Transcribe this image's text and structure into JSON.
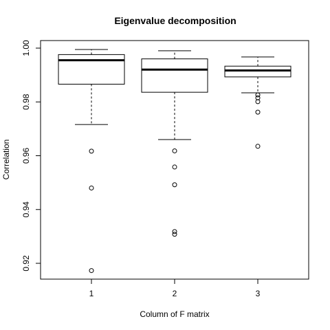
{
  "chart_data": {
    "type": "boxplot",
    "title": "Eigenvalue decomposition",
    "xlabel": "Column of F matrix",
    "ylabel": "Correlation",
    "categories": [
      "1",
      "2",
      "3"
    ],
    "ylim": [
      0.914,
      1.0025
    ],
    "yticks": [
      0.92,
      0.94,
      0.96,
      0.98,
      1.0
    ],
    "ytick_labels": [
      "0.92",
      "0.94",
      "0.96",
      "0.98",
      "1.00"
    ],
    "grid": false,
    "boxes": [
      {
        "category": "1",
        "whisker_low": 0.9716,
        "q1": 0.9866,
        "median": 0.9955,
        "q3": 0.9976,
        "whisker_high": 0.9995,
        "outliers": [
          0.9617,
          0.948,
          0.9173
        ]
      },
      {
        "category": "2",
        "whisker_low": 0.966,
        "q1": 0.9836,
        "median": 0.992,
        "q3": 0.996,
        "whisker_high": 0.999,
        "outliers": [
          0.9618,
          0.9558,
          0.9492,
          0.9318,
          0.9308
        ]
      },
      {
        "category": "3",
        "whisker_low": 0.9834,
        "q1": 0.9893,
        "median": 0.9917,
        "q3": 0.9933,
        "whisker_high": 0.9967,
        "outliers": [
          0.9826,
          0.9815,
          0.9801,
          0.9762,
          0.9635
        ]
      }
    ]
  }
}
